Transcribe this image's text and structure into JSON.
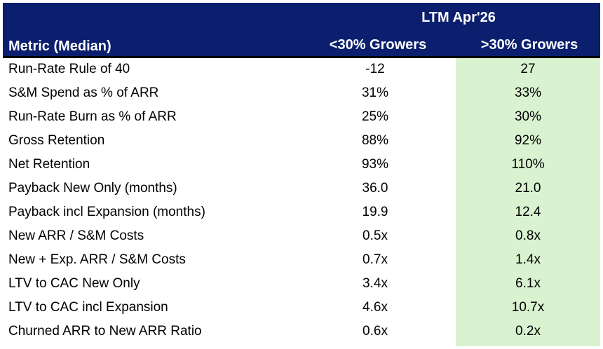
{
  "header": {
    "period": "LTM Apr'26",
    "metric_col": "Metric (Median)",
    "col_a": "<30% Growers",
    "col_b": ">30% Growers"
  },
  "colors": {
    "header_bg": "#0c1f6e",
    "highlight_bg": "#d9f2d0"
  },
  "rows": [
    {
      "label": "Run-Rate Rule of 40",
      "a": "-12",
      "b": "27"
    },
    {
      "label": "S&M Spend as % of ARR",
      "a": "31%",
      "b": "33%"
    },
    {
      "label": "Run-Rate Burn as % of ARR",
      "a": "25%",
      "b": "30%"
    },
    {
      "label": "Gross Retention",
      "a": "88%",
      "b": "92%"
    },
    {
      "label": "Net Retention",
      "a": "93%",
      "b": "110%"
    },
    {
      "label": "Payback New Only (months)",
      "a": "36.0",
      "b": "21.0"
    },
    {
      "label": "Payback incl Expansion (months)",
      "a": "19.9",
      "b": "12.4"
    },
    {
      "label": "New ARR / S&M Costs",
      "a": "0.5x",
      "b": "0.8x"
    },
    {
      "label": "New + Exp. ARR / S&M Costs",
      "a": "0.7x",
      "b": "1.4x"
    },
    {
      "label": "LTV to CAC New Only",
      "a": "3.4x",
      "b": "6.1x"
    },
    {
      "label": "LTV to CAC incl Expansion",
      "a": "4.6x",
      "b": "10.7x"
    },
    {
      "label": "Churned ARR to New ARR Ratio",
      "a": "0.6x",
      "b": "0.2x"
    }
  ]
}
